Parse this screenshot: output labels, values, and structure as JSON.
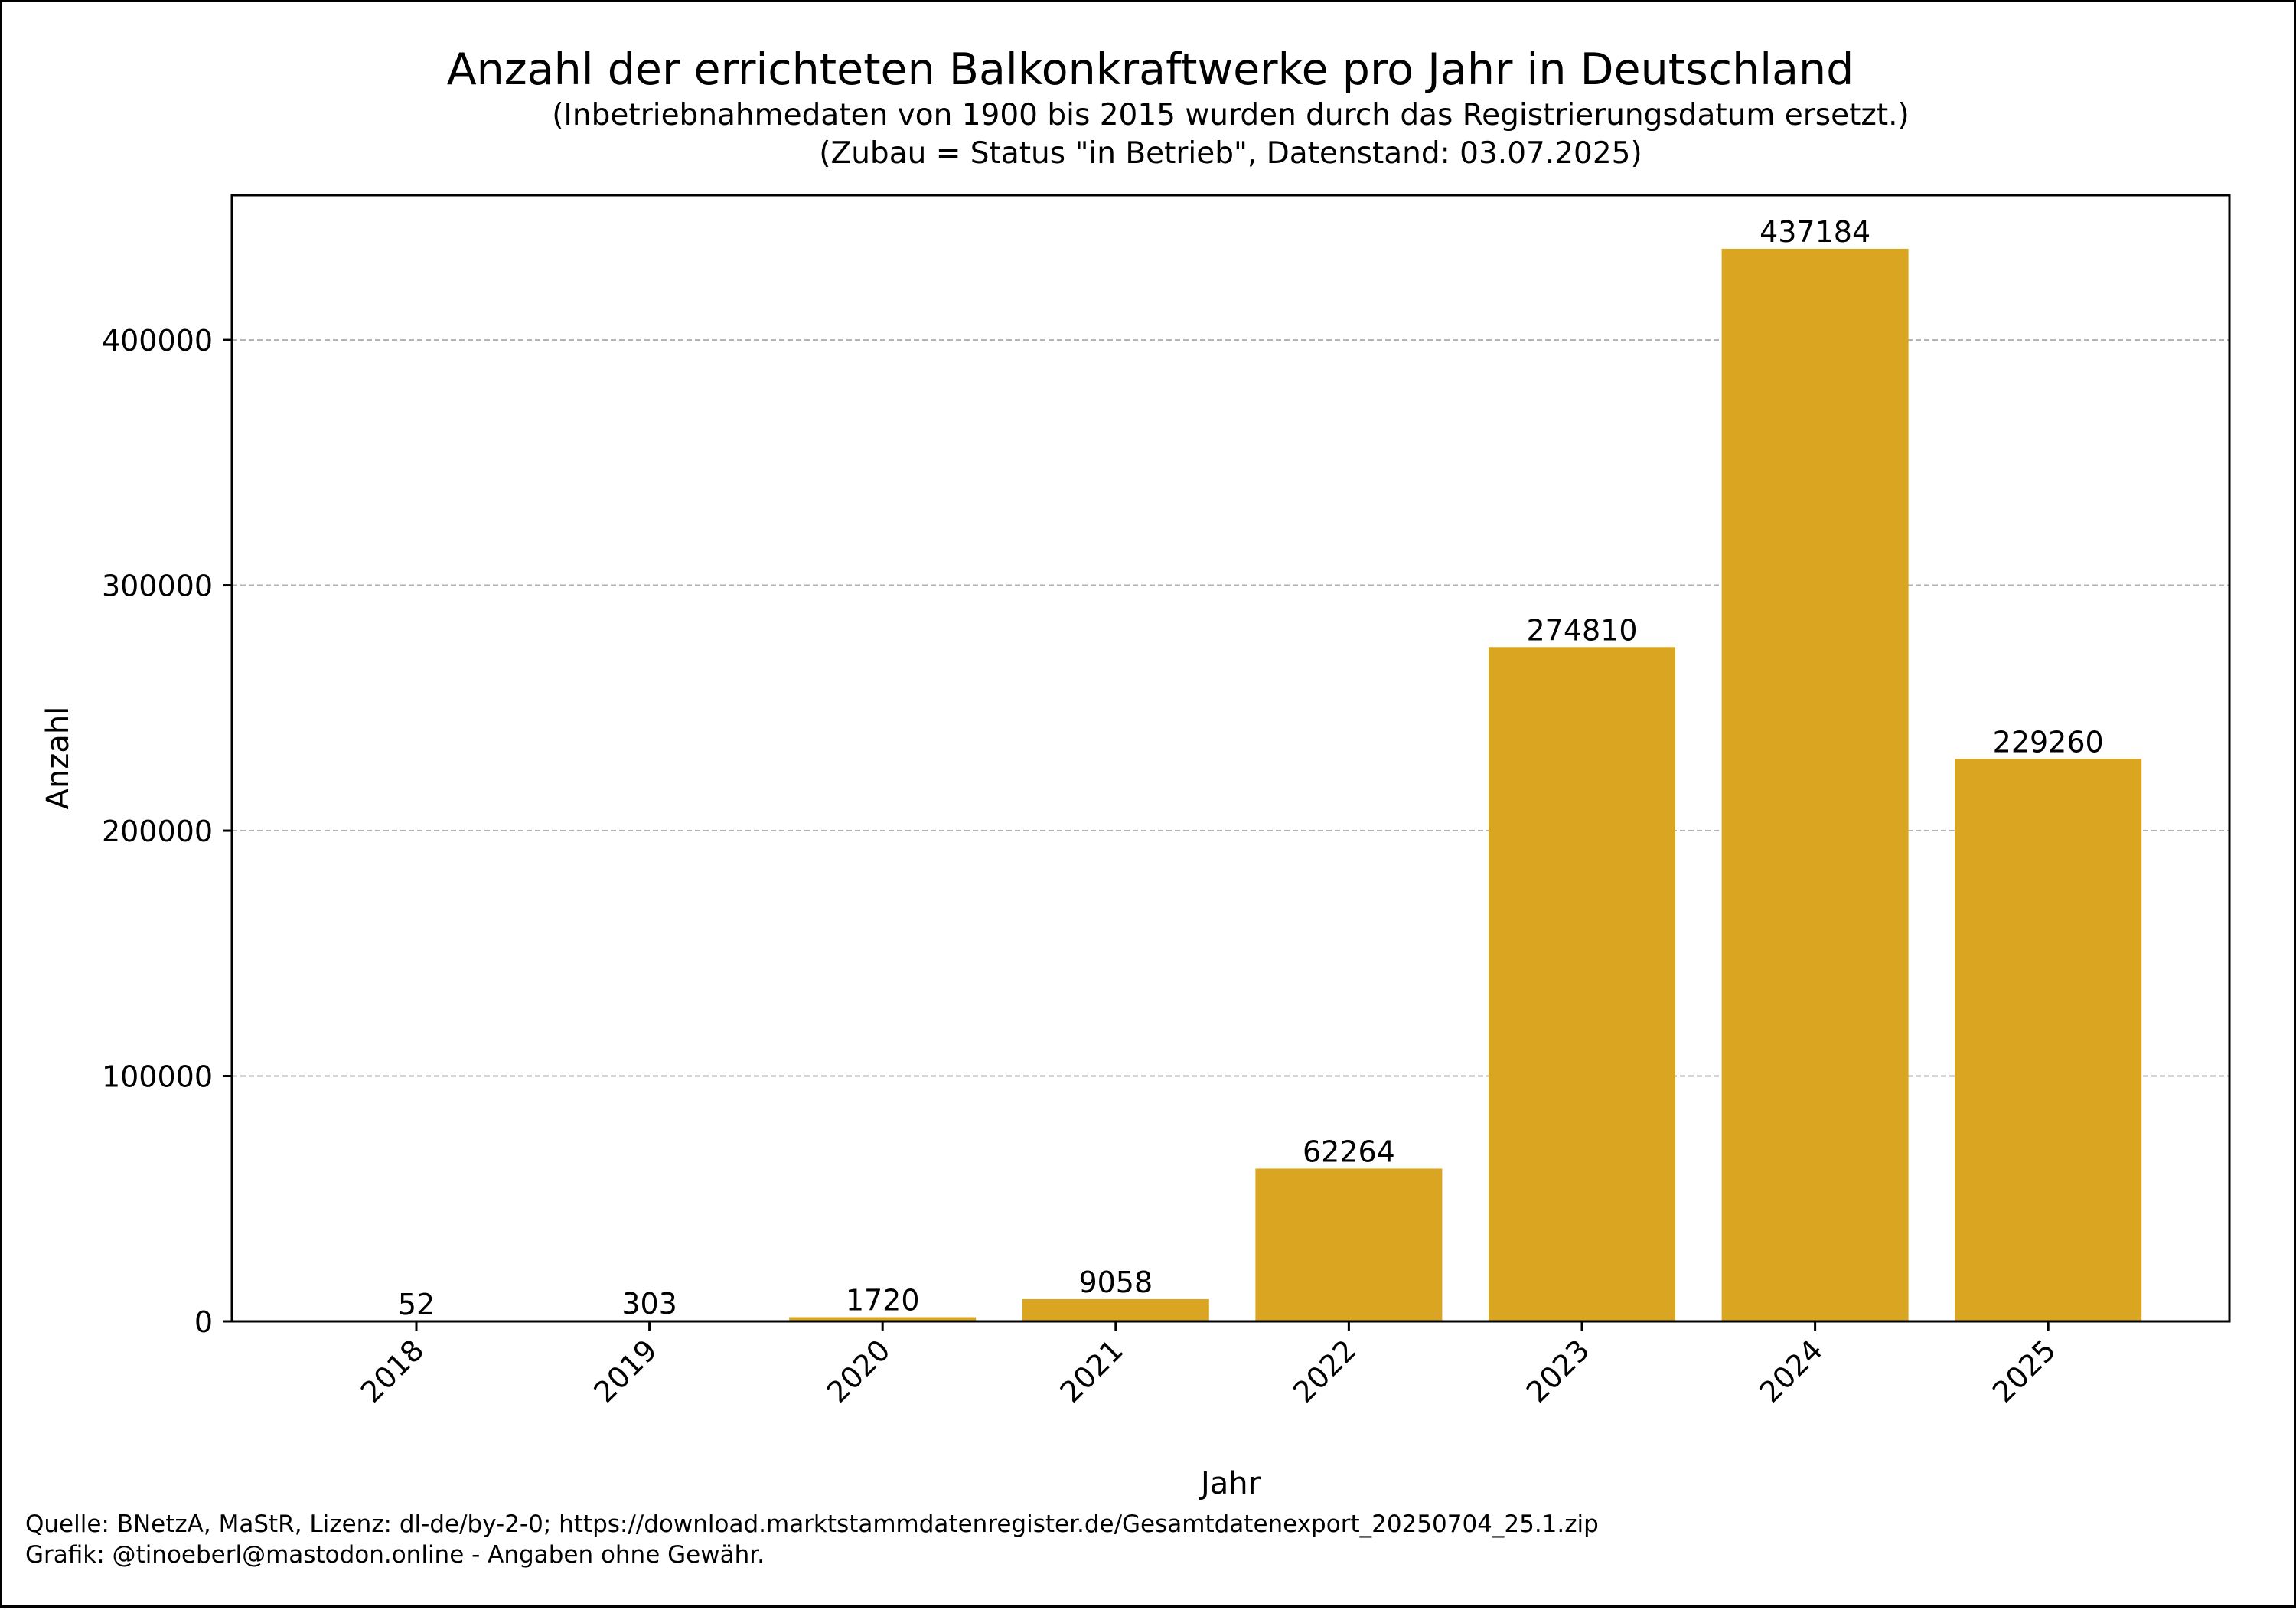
{
  "chart_data": {
    "type": "bar",
    "title": "Anzahl der errichteten Balkonkraftwerke pro Jahr in Deutschland",
    "subtitle_lines": [
      "(Inbetriebnahmedaten von 1900 bis 2015 wurden durch das Registrierungsdatum ersetzt.)",
      "(Zubau = Status \"in Betrieb\", Datenstand: 03.07.2025)"
    ],
    "xlabel": "Jahr",
    "ylabel": "Anzahl",
    "categories": [
      "2018",
      "2019",
      "2020",
      "2021",
      "2022",
      "2023",
      "2024",
      "2025"
    ],
    "values": [
      52,
      303,
      1720,
      9058,
      62264,
      274810,
      437184,
      229260
    ],
    "data_labels": [
      "52",
      "303",
      "1720",
      "9058",
      "62264",
      "274810",
      "437184",
      "229260"
    ],
    "ylim": [
      0,
      459000
    ],
    "yticks": [
      0,
      100000,
      200000,
      300000,
      400000
    ],
    "ytick_labels": [
      "0",
      "100000",
      "200000",
      "300000",
      "400000"
    ],
    "grid": "y, dashed",
    "bar_color": "#DAA520"
  },
  "footer": {
    "source": "Quelle: BNetzA, MaStR, Lizenz: dl-de/by-2-0; https://download.marktstammdatenregister.de/Gesamtdatenexport_20250704_25.1.zip",
    "credit": "Grafik: @tinoeberl@mastodon.online - Angaben ohne Gewähr."
  }
}
